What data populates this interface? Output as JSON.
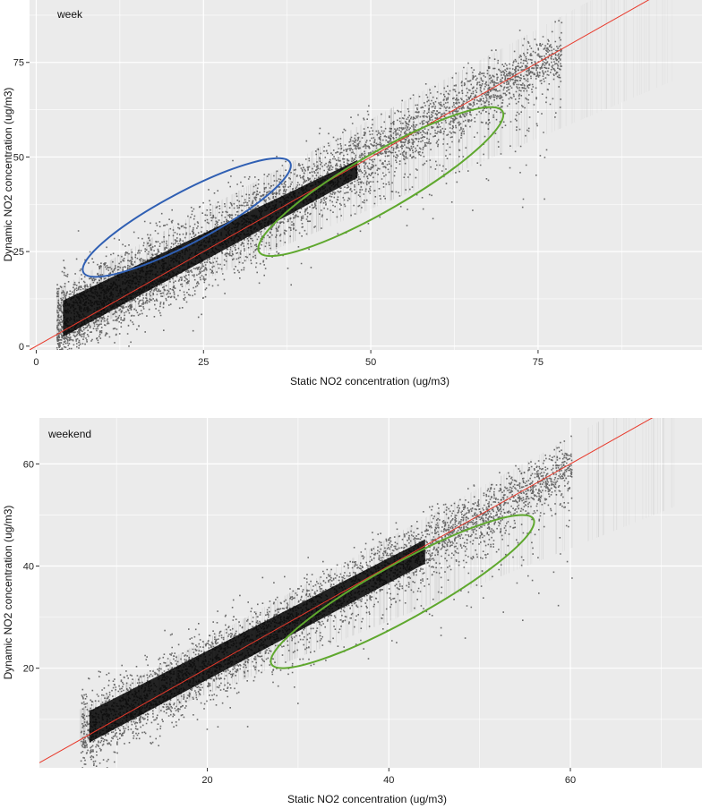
{
  "chart_data": [
    {
      "type": "scatter",
      "panel_label": "week",
      "xlabel": "Static NO2 concentration (ug/m3)",
      "ylabel": "Dynamic NO2 concentration (ug/m3)",
      "xlim": [
        -1,
        99.5
      ],
      "ylim": [
        -1,
        91.5
      ],
      "xticks": [
        0,
        25,
        50,
        75
      ],
      "yticks": [
        0,
        25,
        50,
        75
      ],
      "grid": true,
      "reference_line": {
        "label": "1:1 line",
        "color": "#e8382a",
        "slope": 1,
        "intercept": 0
      },
      "density_band": {
        "x_start": 3,
        "x_end": 95,
        "lower_offset_start": -2,
        "upper_offset_start": 12,
        "lower_offset_end": -25,
        "upper_offset_end": 8
      },
      "ellipses": [
        {
          "name": "overestimation cluster",
          "color": "#2f5fb3",
          "cx": 22.5,
          "cy": 34,
          "rx": 17.5,
          "ry": 16,
          "rotation_deg": -28
        },
        {
          "name": "underestimation cluster",
          "color": "#5fa82e",
          "cx": 51.5,
          "cy": 43.5,
          "rx": 21,
          "ry": 18,
          "rotation_deg": -30
        }
      ]
    },
    {
      "type": "scatter",
      "panel_label": "weekend",
      "xlabel": "Static NO2 concentration (ug/m3)",
      "ylabel": "Dynamic NO2 concentration (ug/m3)",
      "xlim": [
        1.5,
        74.5
      ],
      "ylim": [
        0.5,
        69
      ],
      "xticks": [
        20,
        40,
        60
      ],
      "yticks": [
        20,
        40,
        60
      ],
      "grid": true,
      "reference_line": {
        "label": "1:1 line",
        "color": "#e8382a",
        "slope": 1,
        "intercept": 0
      },
      "density_band": {
        "x_start": 6,
        "x_end": 72,
        "lower_offset_start": -1,
        "upper_offset_start": 6,
        "lower_offset_end": -20,
        "upper_offset_end": 5
      },
      "ellipses": [
        {
          "name": "underestimation cluster",
          "color": "#5fa82e",
          "cx": 41.5,
          "cy": 35,
          "rx": 16.5,
          "ry": 13,
          "rotation_deg": -29
        }
      ]
    }
  ]
}
